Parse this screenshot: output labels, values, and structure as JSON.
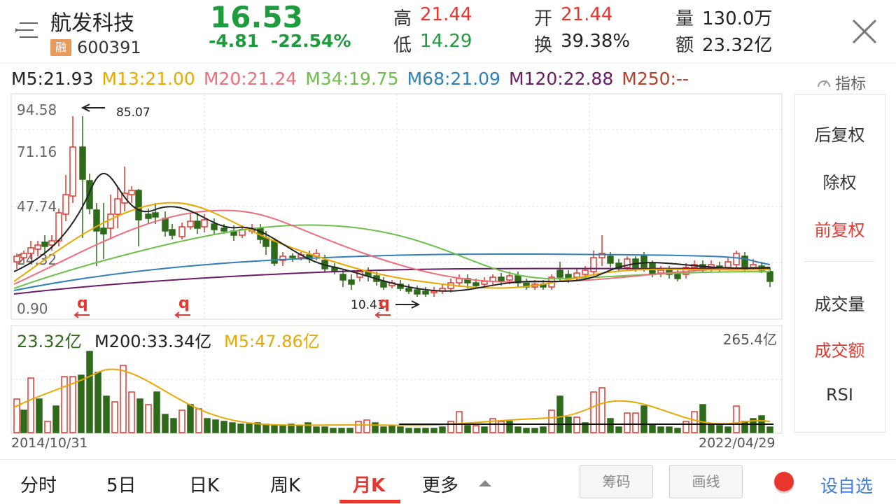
{
  "header": {
    "name": "航发科技",
    "rong_badge": "融",
    "code": "600391",
    "price": "16.53",
    "change": "-4.81",
    "change_pct": "-22.54%",
    "high_label": "高",
    "high_value": "21.44",
    "low_label": "低",
    "low_value": "14.29",
    "open_label": "开",
    "open_value": "21.44",
    "turnover_label": "换",
    "turnover_value": "39.38%",
    "volume_label": "量",
    "volume_value": "130.0万",
    "amount_label": "额",
    "amount_value": "23.32亿"
  },
  "ma_line": {
    "m5": "M5:21.93",
    "m13": "M13:21.00",
    "m20": "M20:21.24",
    "m34": "M34:19.75",
    "m68": "M68:21.09",
    "m120": "M120:22.88",
    "m250": "M250:--",
    "indicator_label": "指标"
  },
  "price_chart": {
    "y_labels": [
      "94.58",
      "71.16",
      "47.74",
      "24.32",
      "0.90"
    ],
    "max_annotation": "85.07",
    "min_annotation": "10.41",
    "rights_markers": [
      "q",
      "q",
      "q"
    ]
  },
  "volume_chart": {
    "amount": "23.32亿",
    "m200": "M200:33.34亿",
    "m5": "M5:47.86亿",
    "max_label": "265.4亿",
    "start_date": "2014/10/31",
    "end_date": "2022/04/29"
  },
  "side_menu": {
    "items": [
      "后复权",
      "除权",
      "前复权",
      "成交量",
      "成交额",
      "RSI"
    ]
  },
  "bottom_tabs": {
    "items": [
      "分时",
      "5日",
      "日K",
      "周K",
      "月K",
      "更多"
    ],
    "active": "月K",
    "chip_button": "筹码",
    "draw_button": "画线",
    "add_watchlist": "设自选"
  },
  "colors": {
    "up": "#e8362e",
    "down": "#2e6a1a",
    "m5": "#222222",
    "m13": "#e8a800",
    "m20": "#ef6e7a",
    "m34": "#6cc04a",
    "m68": "#2f7fb8",
    "m120": "#6a1a66",
    "m250": "#b8402a"
  }
}
